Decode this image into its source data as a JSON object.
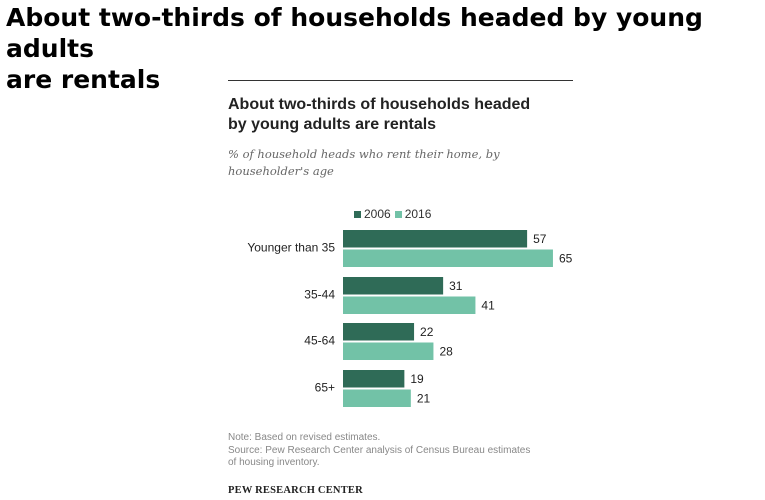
{
  "page": {
    "headline_line1": "About two-thirds of households headed by young adults",
    "headline_line2": "are rentals"
  },
  "chart_data": {
    "type": "bar",
    "orientation": "horizontal",
    "title_line1": "About two-thirds of households headed",
    "title_line2": "by young adults are rentals",
    "subtitle_line1": "% of household heads who rent their home, by",
    "subtitle_line2": "householder's age",
    "categories": [
      "Younger than 35",
      "35-44",
      "45-64",
      "65+"
    ],
    "series": [
      {
        "name": "2006",
        "values": [
          57,
          31,
          22,
          19
        ],
        "color": "#2f6b57"
      },
      {
        "name": "2016",
        "values": [
          65,
          41,
          28,
          21
        ],
        "color": "#72c2a7"
      }
    ],
    "legend_position": "top",
    "grid": false,
    "xlim": [
      0,
      65
    ]
  },
  "notes": {
    "note": "Note: Based on revised estimates.",
    "source_line1": "Source: Pew Research Center analysis of Census Bureau estimates",
    "source_line2": "of housing inventory."
  },
  "footer": {
    "logo": "PEW RESEARCH CENTER"
  }
}
